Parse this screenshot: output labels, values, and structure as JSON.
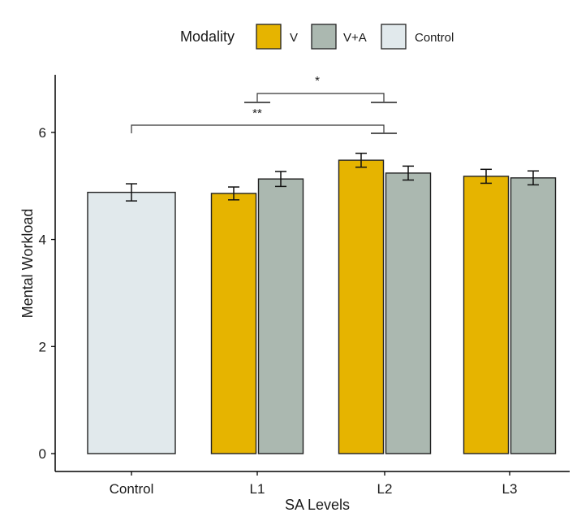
{
  "chart_data": {
    "type": "bar",
    "xlabel": "SA Levels",
    "ylabel": "Mental Workload",
    "ylim": [
      0,
      7
    ],
    "y_ticks": [
      0,
      2,
      4,
      6
    ],
    "categories": [
      "Control",
      "L1",
      "L2",
      "L3"
    ],
    "legend": {
      "title": "Modality",
      "position": "top",
      "entries": [
        {
          "label": "V",
          "color": "#E6B400"
        },
        {
          "label": "V+A",
          "color": "#ABB8B0"
        },
        {
          "label": "Control",
          "color": "#E1E9EC"
        }
      ]
    },
    "bars": [
      {
        "category": "Control",
        "modality": "Control",
        "value": 4.88,
        "error": 0.16
      },
      {
        "category": "L1",
        "modality": "V",
        "value": 4.86,
        "error": 0.12
      },
      {
        "category": "L1",
        "modality": "V+A",
        "value": 5.13,
        "error": 0.14
      },
      {
        "category": "L2",
        "modality": "V",
        "value": 5.48,
        "error": 0.13
      },
      {
        "category": "L2",
        "modality": "V+A",
        "value": 5.24,
        "error": 0.13
      },
      {
        "category": "L3",
        "modality": "V",
        "value": 5.18,
        "error": 0.13
      },
      {
        "category": "L3",
        "modality": "V+A",
        "value": 5.15,
        "error": 0.13
      }
    ],
    "significance": [
      {
        "from": "L1",
        "to": "L2",
        "label": "*"
      },
      {
        "from": "Control",
        "to": "L2",
        "label": "**"
      }
    ],
    "grid": false
  }
}
